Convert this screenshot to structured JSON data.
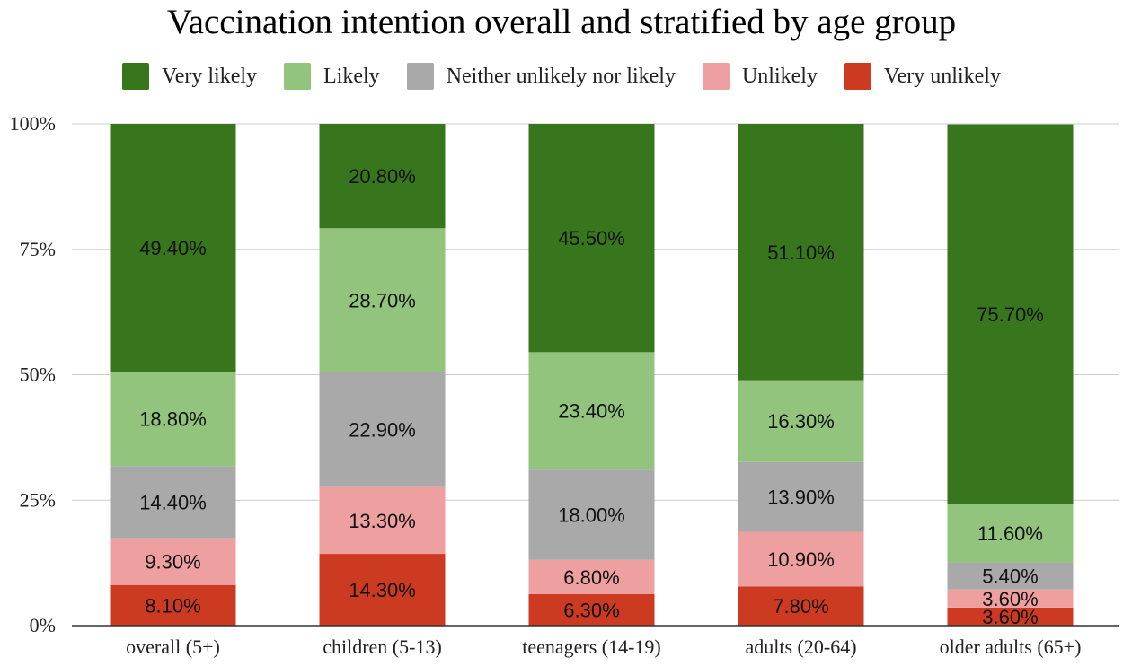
{
  "chart_data": {
    "type": "bar",
    "stacked": true,
    "normalized": true,
    "title": "Vaccination intention overall and stratified by age group",
    "legend_position": "top",
    "categories": [
      "overall (5+)",
      "children (5-13)",
      "teenagers (14-19)",
      "adults (20-64)",
      "older adults (65+)"
    ],
    "y_ticks": [
      "0%",
      "25%",
      "50%",
      "75%",
      "100%"
    ],
    "ylim": [
      0,
      100
    ],
    "grid": true,
    "series": [
      {
        "name": "Very unlikely",
        "color": "#cc3a22",
        "values": [
          8.1,
          14.3,
          6.3,
          7.8,
          3.6
        ],
        "labels": [
          "8.10%",
          "14.30%",
          "6.30%",
          "7.80%",
          "3.60%"
        ]
      },
      {
        "name": "Unlikely",
        "color": "#eea0a0",
        "values": [
          9.3,
          13.3,
          6.8,
          10.9,
          3.6
        ],
        "labels": [
          "9.30%",
          "13.30%",
          "6.80%",
          "10.90%",
          "3.60%"
        ]
      },
      {
        "name": "Neither unlikely nor likely",
        "color": "#a9a9a9",
        "values": [
          14.4,
          22.9,
          18.0,
          13.9,
          5.4
        ],
        "labels": [
          "14.40%",
          "22.90%",
          "18.00%",
          "13.90%",
          "5.40%"
        ]
      },
      {
        "name": "Likely",
        "color": "#93c47d",
        "values": [
          18.8,
          28.7,
          23.4,
          16.3,
          11.6
        ],
        "labels": [
          "18.80%",
          "28.70%",
          "23.40%",
          "16.30%",
          "11.60%"
        ]
      },
      {
        "name": "Very likely",
        "color": "#38761d",
        "values": [
          49.4,
          20.8,
          45.5,
          51.1,
          75.7
        ],
        "labels": [
          "49.40%",
          "20.80%",
          "45.50%",
          "51.10%",
          "75.70%"
        ]
      }
    ],
    "legend_order": [
      "Very likely",
      "Likely",
      "Neither unlikely nor likely",
      "Unlikely",
      "Very unlikely"
    ]
  }
}
